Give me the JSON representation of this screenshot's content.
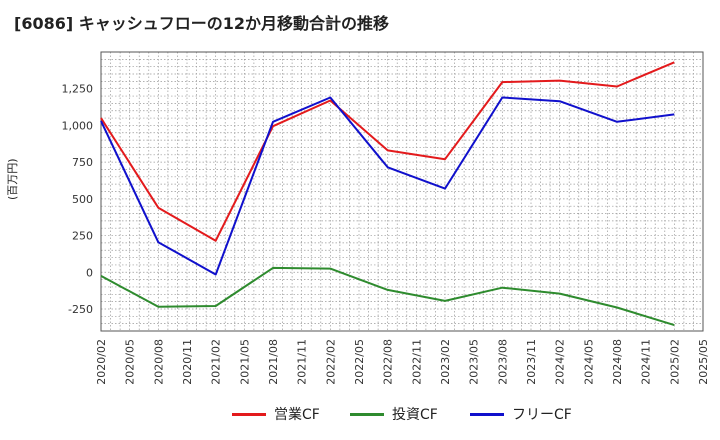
{
  "chart_data": {
    "type": "line",
    "title": "[6086]  キャッシュフローの12か月移動合計の推移",
    "xlabel": "",
    "ylabel": "(百万円)",
    "ylim": [
      -400,
      1500
    ],
    "yticks": [
      -250,
      0,
      250,
      500,
      750,
      1000,
      1250
    ],
    "ytick_labels": [
      "-250",
      "0",
      "250",
      "500",
      "750",
      "1,000",
      "1,250"
    ],
    "x_categories": [
      "2020/02",
      "2020/05",
      "2020/08",
      "2020/11",
      "2021/02",
      "2021/05",
      "2021/08",
      "2021/11",
      "2022/02",
      "2022/05",
      "2022/08",
      "2022/11",
      "2023/02",
      "2023/05",
      "2023/08",
      "2023/11",
      "2024/02",
      "2024/05",
      "2024/08",
      "2024/11",
      "2025/02",
      "2025/05"
    ],
    "grid": true,
    "legend_position": "bottom",
    "series": [
      {
        "name": "営業CF",
        "color": "#e31a1c",
        "points": [
          {
            "x": "2020/02",
            "y": 1050
          },
          {
            "x": "2020/08",
            "y": 440
          },
          {
            "x": "2021/02",
            "y": 215
          },
          {
            "x": "2021/08",
            "y": 995
          },
          {
            "x": "2022/02",
            "y": 1170
          },
          {
            "x": "2022/08",
            "y": 830
          },
          {
            "x": "2023/02",
            "y": 770
          },
          {
            "x": "2023/08",
            "y": 1295
          },
          {
            "x": "2024/02",
            "y": 1305
          },
          {
            "x": "2024/08",
            "y": 1265
          },
          {
            "x": "2025/02",
            "y": 1430
          }
        ]
      },
      {
        "name": "投資CF",
        "color": "#2e8b2e",
        "points": [
          {
            "x": "2020/02",
            "y": -25
          },
          {
            "x": "2020/08",
            "y": -235
          },
          {
            "x": "2021/02",
            "y": -230
          },
          {
            "x": "2021/08",
            "y": 30
          },
          {
            "x": "2022/02",
            "y": 25
          },
          {
            "x": "2022/08",
            "y": -120
          },
          {
            "x": "2023/02",
            "y": -195
          },
          {
            "x": "2023/08",
            "y": -105
          },
          {
            "x": "2024/02",
            "y": -145
          },
          {
            "x": "2024/08",
            "y": -240
          },
          {
            "x": "2025/02",
            "y": -360
          }
        ]
      },
      {
        "name": "フリーCF",
        "color": "#1010cc",
        "points": [
          {
            "x": "2020/02",
            "y": 1030
          },
          {
            "x": "2020/08",
            "y": 205
          },
          {
            "x": "2021/02",
            "y": -15
          },
          {
            "x": "2021/08",
            "y": 1025
          },
          {
            "x": "2022/02",
            "y": 1190
          },
          {
            "x": "2022/08",
            "y": 715
          },
          {
            "x": "2023/02",
            "y": 570
          },
          {
            "x": "2023/08",
            "y": 1190
          },
          {
            "x": "2024/02",
            "y": 1165
          },
          {
            "x": "2024/08",
            "y": 1025
          },
          {
            "x": "2025/02",
            "y": 1075
          }
        ]
      }
    ]
  }
}
